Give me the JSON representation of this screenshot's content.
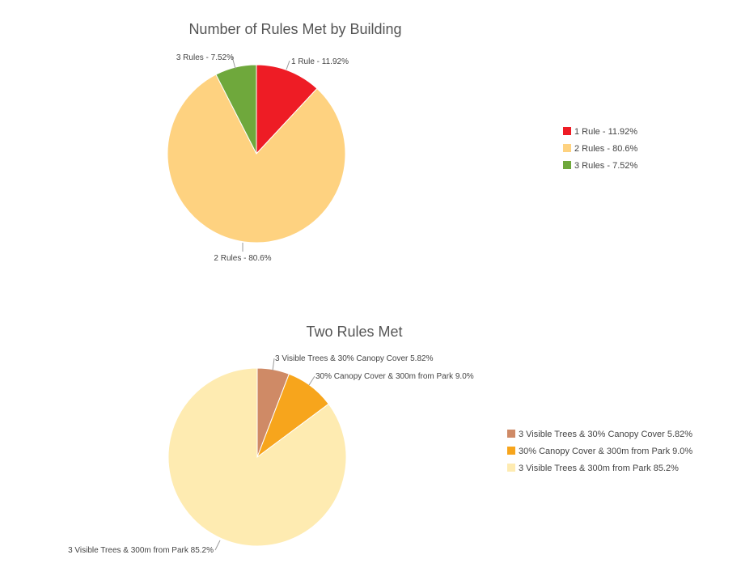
{
  "chart_data": [
    {
      "type": "pie",
      "title": "Number of Rules Met by Building",
      "legend_position": "right",
      "slices": [
        {
          "label": "1 Rule - 11.92%",
          "value": 11.92,
          "color": "#ee1c25"
        },
        {
          "label": "2 Rules - 80.6%",
          "value": 80.56,
          "color": "#fed280"
        },
        {
          "label": "3 Rules - 7.52%",
          "value": 7.52,
          "color": "#6fa83c"
        }
      ]
    },
    {
      "type": "pie",
      "title": "Two Rules Met",
      "legend_position": "right",
      "slices": [
        {
          "label": "3 Visible Trees & 30% Canopy Cover 5.82%",
          "value": 5.82,
          "color": "#cf8a66"
        },
        {
          "label": "30% Canopy Cover & 300m from Park 9.0%",
          "value": 9.0,
          "color": "#f7a51c"
        },
        {
          "label": "3 Visible Trees & 300m from Park 85.2%",
          "value": 85.2,
          "color": "#feebb1"
        }
      ]
    }
  ]
}
